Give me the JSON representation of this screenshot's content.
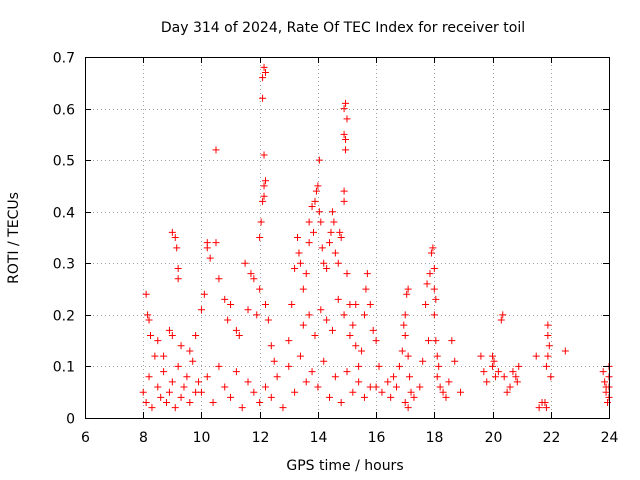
{
  "chart_data": {
    "type": "scatter",
    "title": "Day 314 of 2024, Rate Of TEC Index for receiver toil",
    "xlabel": "GPS time / hours",
    "ylabel": "ROTI / TECUs",
    "xlim": [
      6,
      24
    ],
    "ylim": [
      0,
      0.7
    ],
    "x_ticks": [
      "6",
      "8",
      "10",
      "12",
      "14",
      "16",
      "18",
      "20",
      "22",
      "24"
    ],
    "y_ticks": [
      "0",
      "0.1",
      "0.2",
      "0.3",
      "0.4",
      "0.5",
      "0.6",
      "0.7"
    ],
    "grid": true,
    "marker": "+",
    "point_color": "#ff0000",
    "series": [
      {
        "name": "ROTI",
        "points": [
          [
            8.0,
            0.05
          ],
          [
            8.1,
            0.03
          ],
          [
            8.2,
            0.08
          ],
          [
            8.3,
            0.02
          ],
          [
            8.4,
            0.12
          ],
          [
            8.5,
            0.06
          ],
          [
            8.6,
            0.04
          ],
          [
            8.7,
            0.09
          ],
          [
            8.8,
            0.03
          ],
          [
            8.9,
            0.05
          ],
          [
            9.0,
            0.07
          ],
          [
            9.1,
            0.02
          ],
          [
            9.2,
            0.1
          ],
          [
            9.3,
            0.04
          ],
          [
            9.4,
            0.06
          ],
          [
            9.5,
            0.08
          ],
          [
            9.6,
            0.03
          ],
          [
            9.7,
            0.11
          ],
          [
            9.8,
            0.05
          ],
          [
            9.9,
            0.07
          ],
          [
            8.1,
            0.24
          ],
          [
            8.15,
            0.2
          ],
          [
            8.2,
            0.19
          ],
          [
            8.25,
            0.16
          ],
          [
            8.5,
            0.15
          ],
          [
            8.7,
            0.12
          ],
          [
            8.9,
            0.17
          ],
          [
            9.0,
            0.36
          ],
          [
            9.1,
            0.35
          ],
          [
            9.15,
            0.33
          ],
          [
            9.2,
            0.29
          ],
          [
            9.2,
            0.27
          ],
          [
            9.0,
            0.16
          ],
          [
            9.3,
            0.14
          ],
          [
            9.6,
            0.13
          ],
          [
            9.8,
            0.16
          ],
          [
            10.0,
            0.21
          ],
          [
            10.1,
            0.24
          ],
          [
            10.2,
            0.34
          ],
          [
            10.3,
            0.31
          ],
          [
            10.2,
            0.33
          ],
          [
            10.5,
            0.34
          ],
          [
            10.5,
            0.52
          ],
          [
            10.6,
            0.27
          ],
          [
            10.8,
            0.23
          ],
          [
            10.9,
            0.19
          ],
          [
            11.0,
            0.22
          ],
          [
            11.2,
            0.17
          ],
          [
            11.3,
            0.16
          ],
          [
            11.5,
            0.3
          ],
          [
            11.7,
            0.28
          ],
          [
            11.8,
            0.27
          ],
          [
            11.6,
            0.21
          ],
          [
            11.9,
            0.2
          ],
          [
            12.0,
            0.35
          ],
          [
            12.05,
            0.38
          ],
          [
            12.1,
            0.42
          ],
          [
            12.15,
            0.43
          ],
          [
            12.15,
            0.45
          ],
          [
            12.2,
            0.46
          ],
          [
            12.1,
            0.62
          ],
          [
            12.1,
            0.66
          ],
          [
            12.15,
            0.68
          ],
          [
            12.2,
            0.67
          ],
          [
            12.15,
            0.51
          ],
          [
            12.0,
            0.25
          ],
          [
            12.2,
            0.22
          ],
          [
            12.3,
            0.19
          ],
          [
            12.4,
            0.14
          ],
          [
            12.5,
            0.11
          ],
          [
            10.0,
            0.05
          ],
          [
            10.2,
            0.08
          ],
          [
            10.4,
            0.03
          ],
          [
            10.6,
            0.1
          ],
          [
            10.8,
            0.06
          ],
          [
            11.0,
            0.04
          ],
          [
            11.2,
            0.09
          ],
          [
            11.4,
            0.02
          ],
          [
            11.6,
            0.07
          ],
          [
            11.8,
            0.05
          ],
          [
            12.0,
            0.03
          ],
          [
            12.2,
            0.06
          ],
          [
            12.4,
            0.04
          ],
          [
            12.6,
            0.08
          ],
          [
            12.8,
            0.02
          ],
          [
            13.0,
            0.1
          ],
          [
            13.2,
            0.05
          ],
          [
            13.4,
            0.12
          ],
          [
            13.6,
            0.07
          ],
          [
            13.8,
            0.09
          ],
          [
            14.0,
            0.06
          ],
          [
            14.2,
            0.11
          ],
          [
            14.4,
            0.04
          ],
          [
            14.6,
            0.08
          ],
          [
            14.8,
            0.03
          ],
          [
            15.0,
            0.09
          ],
          [
            15.2,
            0.05
          ],
          [
            15.4,
            0.07
          ],
          [
            15.6,
            0.04
          ],
          [
            15.8,
            0.06
          ],
          [
            13.0,
            0.15
          ],
          [
            13.1,
            0.22
          ],
          [
            13.2,
            0.29
          ],
          [
            13.3,
            0.35
          ],
          [
            13.35,
            0.32
          ],
          [
            13.4,
            0.3
          ],
          [
            13.5,
            0.25
          ],
          [
            13.6,
            0.28
          ],
          [
            13.7,
            0.34
          ],
          [
            13.7,
            0.38
          ],
          [
            13.8,
            0.41
          ],
          [
            13.85,
            0.36
          ],
          [
            13.9,
            0.42
          ],
          [
            13.95,
            0.44
          ],
          [
            14.0,
            0.45
          ],
          [
            14.05,
            0.5
          ],
          [
            14.05,
            0.4
          ],
          [
            14.1,
            0.38
          ],
          [
            14.15,
            0.33
          ],
          [
            14.2,
            0.3
          ],
          [
            14.3,
            0.29
          ],
          [
            14.4,
            0.34
          ],
          [
            14.45,
            0.36
          ],
          [
            14.5,
            0.4
          ],
          [
            14.55,
            0.38
          ],
          [
            14.6,
            0.32
          ],
          [
            14.7,
            0.3
          ],
          [
            14.75,
            0.36
          ],
          [
            14.8,
            0.35
          ],
          [
            14.9,
            0.42
          ],
          [
            14.9,
            0.44
          ],
          [
            14.9,
            0.55
          ],
          [
            14.95,
            0.52
          ],
          [
            14.9,
            0.6
          ],
          [
            14.95,
            0.61
          ],
          [
            15.0,
            0.58
          ],
          [
            14.95,
            0.54
          ],
          [
            15.0,
            0.28
          ],
          [
            15.1,
            0.22
          ],
          [
            15.2,
            0.18
          ],
          [
            13.5,
            0.18
          ],
          [
            13.7,
            0.2
          ],
          [
            13.9,
            0.16
          ],
          [
            14.1,
            0.21
          ],
          [
            14.3,
            0.19
          ],
          [
            14.5,
            0.17
          ],
          [
            14.7,
            0.23
          ],
          [
            14.9,
            0.2
          ],
          [
            15.1,
            0.16
          ],
          [
            15.3,
            0.14
          ],
          [
            15.3,
            0.22
          ],
          [
            15.4,
            0.1
          ],
          [
            15.5,
            0.13
          ],
          [
            15.6,
            0.2
          ],
          [
            15.65,
            0.25
          ],
          [
            15.7,
            0.28
          ],
          [
            15.8,
            0.22
          ],
          [
            15.9,
            0.17
          ],
          [
            16.0,
            0.15
          ],
          [
            16.1,
            0.1
          ],
          [
            16.0,
            0.06
          ],
          [
            16.2,
            0.05
          ],
          [
            16.4,
            0.07
          ],
          [
            16.5,
            0.04
          ],
          [
            16.6,
            0.08
          ],
          [
            16.7,
            0.06
          ],
          [
            16.8,
            0.1
          ],
          [
            16.9,
            0.13
          ],
          [
            16.95,
            0.18
          ],
          [
            17.0,
            0.2
          ],
          [
            17.0,
            0.16
          ],
          [
            17.05,
            0.24
          ],
          [
            17.1,
            0.25
          ],
          [
            17.1,
            0.12
          ],
          [
            17.15,
            0.08
          ],
          [
            17.0,
            0.03
          ],
          [
            17.1,
            0.02
          ],
          [
            17.2,
            0.05
          ],
          [
            17.3,
            0.04
          ],
          [
            17.5,
            0.06
          ],
          [
            17.6,
            0.11
          ],
          [
            17.8,
            0.15
          ],
          [
            17.7,
            0.22
          ],
          [
            17.75,
            0.26
          ],
          [
            17.85,
            0.28
          ],
          [
            17.9,
            0.32
          ],
          [
            17.95,
            0.33
          ],
          [
            18.0,
            0.29
          ],
          [
            18.0,
            0.25
          ],
          [
            18.05,
            0.23
          ],
          [
            18.0,
            0.2
          ],
          [
            18.05,
            0.15
          ],
          [
            18.1,
            0.12
          ],
          [
            18.1,
            0.08
          ],
          [
            18.15,
            0.1
          ],
          [
            18.2,
            0.06
          ],
          [
            18.3,
            0.05
          ],
          [
            18.4,
            0.04
          ],
          [
            18.5,
            0.07
          ],
          [
            18.6,
            0.15
          ],
          [
            18.7,
            0.11
          ],
          [
            18.9,
            0.05
          ],
          [
            19.6,
            0.12
          ],
          [
            19.7,
            0.09
          ],
          [
            19.8,
            0.07
          ],
          [
            20.0,
            0.1
          ],
          [
            20.0,
            0.12
          ],
          [
            20.05,
            0.11
          ],
          [
            20.1,
            0.08
          ],
          [
            20.2,
            0.09
          ],
          [
            20.3,
            0.19
          ],
          [
            20.35,
            0.2
          ],
          [
            20.4,
            0.08
          ],
          [
            20.6,
            0.06
          ],
          [
            20.7,
            0.09
          ],
          [
            20.8,
            0.08
          ],
          [
            20.9,
            0.1
          ],
          [
            20.85,
            0.07
          ],
          [
            20.5,
            0.05
          ],
          [
            21.5,
            0.12
          ],
          [
            21.6,
            0.02
          ],
          [
            21.7,
            0.03
          ],
          [
            21.8,
            0.03
          ],
          [
            21.85,
            0.02
          ],
          [
            21.9,
            0.18
          ],
          [
            21.9,
            0.16
          ],
          [
            21.95,
            0.14
          ],
          [
            21.9,
            0.12
          ],
          [
            21.85,
            0.1
          ],
          [
            22.0,
            0.08
          ],
          [
            22.5,
            0.13
          ],
          [
            23.8,
            0.09
          ],
          [
            23.85,
            0.07
          ],
          [
            23.9,
            0.05
          ],
          [
            24.0,
            0.08
          ],
          [
            24.0,
            0.04
          ],
          [
            23.9,
            0.06
          ],
          [
            24.0,
            0.1
          ],
          [
            23.95,
            0.03
          ],
          [
            24.0,
            0.06
          ]
        ]
      }
    ]
  }
}
